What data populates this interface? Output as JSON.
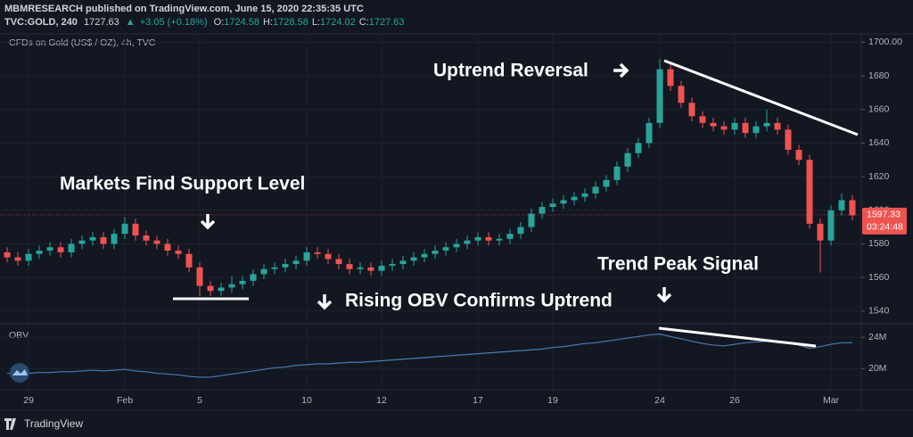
{
  "header": {
    "publisher": "MBMRESEARCH published on TradingView.com, June 15, 2020 22:35:35 UTC",
    "symbol": "TVC:GOLD, 240",
    "price": "1727.63",
    "change": "+3.05 (+0.18%)",
    "ohlc": [
      {
        "label": "O:",
        "value": "1724.58"
      },
      {
        "label": "H:",
        "value": "1728.58"
      },
      {
        "label": "L:",
        "value": "1724.02"
      },
      {
        "label": "C:",
        "value": "1727.63"
      }
    ]
  },
  "footer": {
    "brand": "TradingView"
  },
  "chart_data": {
    "type": "candlestick",
    "subtitle": "CFDs on Gold (US$ / OZ), 4h, TVC",
    "annotations": [
      "Uptrend Reversal",
      "Markets Find Support Level",
      "Rising OBV Confirms Uptrend",
      "Trend Peak Signal"
    ],
    "categories": [
      null,
      null,
      "29",
      null,
      null,
      null,
      null,
      null,
      null,
      null,
      null,
      "Feb",
      null,
      null,
      null,
      null,
      null,
      null,
      "5",
      null,
      null,
      null,
      null,
      null,
      null,
      null,
      null,
      null,
      "10",
      null,
      null,
      null,
      null,
      null,
      null,
      "12",
      null,
      null,
      null,
      null,
      null,
      null,
      null,
      null,
      "17",
      null,
      null,
      null,
      null,
      null,
      null,
      "19",
      null,
      null,
      null,
      null,
      null,
      null,
      null,
      null,
      null,
      "24",
      null,
      null,
      null,
      null,
      null,
      null,
      "26",
      null,
      null,
      null,
      null,
      null,
      null,
      null,
      null,
      "Mar",
      null,
      null
    ],
    "open": [
      1575,
      1572,
      1570,
      1574,
      1576,
      1578,
      1575,
      1580,
      1582,
      1584,
      1580,
      1586,
      1592,
      1585,
      1582,
      1580,
      1576,
      1574,
      1566,
      1555,
      1552,
      1554,
      1556,
      1558,
      1562,
      1565,
      1566,
      1568,
      1570,
      1575,
      1574,
      1571,
      1568,
      1565,
      1566,
      1564,
      1567,
      1568,
      1570,
      1572,
      1574,
      1576,
      1578,
      1580,
      1582,
      1584,
      1582,
      1583,
      1586,
      1590,
      1598,
      1602,
      1604,
      1606,
      1608,
      1610,
      1614,
      1618,
      1626,
      1634,
      1640,
      1652,
      1684,
      1674,
      1664,
      1656,
      1652,
      1650,
      1648,
      1652,
      1646,
      1650,
      1652,
      1648,
      1636,
      1630,
      1592,
      1582,
      1600,
      1606
    ],
    "high": [
      1578,
      1575,
      1577,
      1579,
      1581,
      1581,
      1583,
      1585,
      1587,
      1587,
      1589,
      1596,
      1595,
      1588,
      1585,
      1583,
      1579,
      1577,
      1569,
      1558,
      1557,
      1561,
      1561,
      1565,
      1568,
      1569,
      1571,
      1573,
      1578,
      1578,
      1577,
      1574,
      1571,
      1569,
      1569,
      1570,
      1571,
      1573,
      1575,
      1577,
      1579,
      1581,
      1583,
      1585,
      1587,
      1587,
      1586,
      1589,
      1593,
      1601,
      1605,
      1607,
      1609,
      1611,
      1613,
      1617,
      1621,
      1629,
      1637,
      1643,
      1655,
      1690,
      1687,
      1677,
      1667,
      1659,
      1655,
      1653,
      1655,
      1655,
      1653,
      1660,
      1655,
      1651,
      1639,
      1633,
      1595,
      1603,
      1610,
      1609
    ],
    "low": [
      1569,
      1567,
      1567,
      1571,
      1573,
      1572,
      1572,
      1577,
      1579,
      1577,
      1577,
      1583,
      1582,
      1579,
      1577,
      1573,
      1571,
      1563,
      1549,
      1549,
      1549,
      1551,
      1553,
      1555,
      1559,
      1562,
      1563,
      1565,
      1567,
      1571,
      1568,
      1565,
      1562,
      1562,
      1561,
      1561,
      1564,
      1565,
      1567,
      1569,
      1571,
      1573,
      1575,
      1577,
      1579,
      1579,
      1579,
      1580,
      1583,
      1587,
      1595,
      1599,
      1601,
      1603,
      1605,
      1607,
      1611,
      1615,
      1623,
      1631,
      1637,
      1649,
      1671,
      1661,
      1653,
      1649,
      1647,
      1645,
      1645,
      1643,
      1643,
      1647,
      1645,
      1633,
      1627,
      1589,
      1563,
      1579,
      1597,
      1594
    ],
    "close": [
      1572,
      1570,
      1574,
      1576,
      1578,
      1575,
      1580,
      1582,
      1584,
      1580,
      1586,
      1592,
      1585,
      1582,
      1580,
      1576,
      1574,
      1566,
      1555,
      1552,
      1554,
      1556,
      1558,
      1562,
      1565,
      1566,
      1568,
      1570,
      1575,
      1574,
      1571,
      1568,
      1565,
      1566,
      1564,
      1567,
      1568,
      1570,
      1572,
      1574,
      1576,
      1578,
      1580,
      1582,
      1584,
      1582,
      1583,
      1586,
      1590,
      1598,
      1602,
      1604,
      1606,
      1608,
      1610,
      1614,
      1618,
      1626,
      1634,
      1640,
      1652,
      1684,
      1674,
      1664,
      1656,
      1652,
      1650,
      1648,
      1652,
      1646,
      1650,
      1652,
      1648,
      1636,
      1630,
      1592,
      1582,
      1600,
      1606,
      1597
    ],
    "up_color": "#26a69a",
    "down_color": "#ef5350",
    "ylim": [
      1533,
      1705
    ],
    "yticks": [
      1540,
      1560,
      1580,
      1600,
      1620,
      1640,
      1660,
      1680,
      {
        "value": 1700,
        "label": "1700.00"
      }
    ],
    "last_price": 1597.33,
    "countdown": "03:24:48",
    "series": [
      {
        "name": "OBV",
        "axis": "y2",
        "color": "#4a7bb5",
        "values": [
          19400000,
          19300000,
          19400000,
          19500000,
          19500000,
          19600000,
          19600000,
          19700000,
          19800000,
          19700000,
          19800000,
          19900000,
          19700000,
          19600000,
          19400000,
          19300000,
          19200000,
          19000000,
          18900000,
          18900000,
          19100000,
          19300000,
          19500000,
          19700000,
          19900000,
          20100000,
          20200000,
          20400000,
          20500000,
          20600000,
          20600000,
          20700000,
          20800000,
          20800000,
          20900000,
          21000000,
          21100000,
          21200000,
          21300000,
          21400000,
          21500000,
          21600000,
          21700000,
          21800000,
          21900000,
          22000000,
          22100000,
          22200000,
          22300000,
          22400000,
          22500000,
          22700000,
          22800000,
          23000000,
          23200000,
          23300000,
          23500000,
          23700000,
          23900000,
          24100000,
          24300000,
          24400000,
          24100000,
          23800000,
          23500000,
          23200000,
          23000000,
          22900000,
          23100000,
          23300000,
          23400000,
          23500000,
          23300000,
          23200000,
          23000000,
          22600000,
          22800000,
          23100000,
          23300000,
          23300000
        ]
      }
    ],
    "y2lim": [
      17300000,
      25500000
    ],
    "y2ticks": [
      {
        "value": 20000000,
        "label": "20M"
      },
      {
        "value": 24000000,
        "label": "24M"
      }
    ],
    "grid": true
  }
}
